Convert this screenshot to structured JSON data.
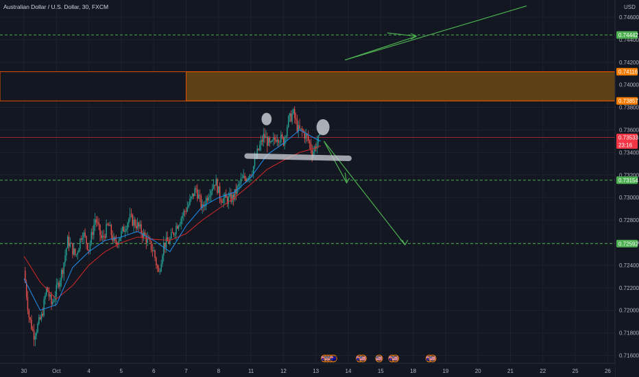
{
  "header": {
    "title": "Australian Dollar / U.S. Dollar, 30, FXCM",
    "currency": "USD"
  },
  "chart_data": {
    "type": "candlestick",
    "title": "Australian Dollar / U.S. Dollar, 30, FXCM",
    "ylim": [
      0.7157,
      0.747
    ],
    "y_ticks": [
      "0.74600",
      "0.74400",
      "0.74200",
      "0.74000",
      "0.73800",
      "0.73600",
      "0.73400",
      "0.73200",
      "0.73000",
      "0.72800",
      "0.72600",
      "0.72400",
      "0.72200",
      "0.72000",
      "0.71800",
      "0.71600"
    ],
    "y_tick_values": [
      0.746,
      0.744,
      0.742,
      0.74,
      0.738,
      0.736,
      0.734,
      0.732,
      0.73,
      0.728,
      0.726,
      0.724,
      0.722,
      0.72,
      0.718,
      0.716
    ],
    "x_ticks": [
      "30",
      "Oct",
      "4",
      "5",
      "6",
      "7",
      "8",
      "11",
      "12",
      "13",
      "14",
      "15",
      "18",
      "19",
      "20",
      "21",
      "22",
      "25",
      "26"
    ],
    "x_tick_days": [
      0,
      1,
      2,
      3,
      4,
      5,
      6,
      7,
      8,
      9,
      10,
      11,
      12,
      13,
      14,
      15,
      16,
      17,
      18
    ],
    "price_path": [
      [
        0.0,
        0.7235
      ],
      [
        0.15,
        0.7195
      ],
      [
        0.3,
        0.7178
      ],
      [
        0.55,
        0.7195
      ],
      [
        0.7,
        0.722
      ],
      [
        0.85,
        0.7205
      ],
      [
        1.0,
        0.7218
      ],
      [
        1.2,
        0.7238
      ],
      [
        1.35,
        0.7262
      ],
      [
        1.6,
        0.7248
      ],
      [
        1.8,
        0.727
      ],
      [
        2.0,
        0.7255
      ],
      [
        2.2,
        0.7282
      ],
      [
        2.4,
        0.7262
      ],
      [
        2.6,
        0.7276
      ],
      [
        2.8,
        0.7258
      ],
      [
        3.0,
        0.7268
      ],
      [
        3.25,
        0.7282
      ],
      [
        3.5,
        0.7275
      ],
      [
        3.8,
        0.7262
      ],
      [
        4.0,
        0.7252
      ],
      [
        4.15,
        0.7232
      ],
      [
        4.3,
        0.7258
      ],
      [
        4.5,
        0.7262
      ],
      [
        4.7,
        0.7275
      ],
      [
        4.9,
        0.7285
      ],
      [
        5.1,
        0.7295
      ],
      [
        5.3,
        0.7308
      ],
      [
        5.5,
        0.729
      ],
      [
        5.7,
        0.7305
      ],
      [
        5.9,
        0.7315
      ],
      [
        6.05,
        0.73
      ],
      [
        6.25,
        0.7298
      ],
      [
        6.45,
        0.73
      ],
      [
        6.7,
        0.7315
      ],
      [
        6.85,
        0.7318
      ],
      [
        7.05,
        0.7325
      ],
      [
        7.2,
        0.734
      ],
      [
        7.4,
        0.7355
      ],
      [
        7.6,
        0.7345
      ],
      [
        7.8,
        0.7355
      ],
      [
        8.0,
        0.735
      ],
      [
        8.15,
        0.7368
      ],
      [
        8.3,
        0.7375
      ],
      [
        8.45,
        0.736
      ],
      [
        8.6,
        0.7358
      ],
      [
        8.75,
        0.7352
      ],
      [
        8.9,
        0.734
      ],
      [
        9.05,
        0.735
      ],
      [
        9.15,
        0.7353
      ]
    ],
    "ma_fast": [
      [
        0.0,
        0.7228
      ],
      [
        0.5,
        0.72
      ],
      [
        1.0,
        0.7205
      ],
      [
        1.5,
        0.7238
      ],
      [
        2.0,
        0.7252
      ],
      [
        2.5,
        0.7262
      ],
      [
        3.0,
        0.7265
      ],
      [
        3.5,
        0.727
      ],
      [
        4.0,
        0.7262
      ],
      [
        4.5,
        0.7252
      ],
      [
        5.0,
        0.7275
      ],
      [
        5.5,
        0.7292
      ],
      [
        6.0,
        0.73
      ],
      [
        6.5,
        0.7305
      ],
      [
        7.0,
        0.7318
      ],
      [
        7.5,
        0.7338
      ],
      [
        8.0,
        0.7348
      ],
      [
        8.5,
        0.736
      ],
      [
        9.0,
        0.7352
      ],
      [
        9.15,
        0.735
      ]
    ],
    "ma_slow": [
      [
        0.0,
        0.7248
      ],
      [
        0.5,
        0.7225
      ],
      [
        1.0,
        0.721
      ],
      [
        1.5,
        0.7222
      ],
      [
        2.0,
        0.724
      ],
      [
        2.5,
        0.7252
      ],
      [
        3.0,
        0.726
      ],
      [
        3.5,
        0.7265
      ],
      [
        4.0,
        0.7263
      ],
      [
        4.5,
        0.7262
      ],
      [
        5.0,
        0.7268
      ],
      [
        5.5,
        0.728
      ],
      [
        6.0,
        0.729
      ],
      [
        6.5,
        0.73
      ],
      [
        7.0,
        0.7312
      ],
      [
        7.5,
        0.7325
      ],
      [
        8.0,
        0.7333
      ],
      [
        8.5,
        0.734
      ],
      [
        9.0,
        0.7344
      ],
      [
        9.15,
        0.7346
      ]
    ],
    "zone": {
      "top": 0.74116,
      "bottom": 0.73857,
      "start_day": 5.0
    },
    "levels": [
      {
        "value": 0.74442,
        "label": "0.74442",
        "color": "#4caf50",
        "dashed": true
      },
      {
        "value": 0.73154,
        "label": "0.73154",
        "color": "#4caf50",
        "dashed": true
      },
      {
        "value": 0.72592,
        "label": "0.72592",
        "color": "#4caf50",
        "dashed": true
      },
      {
        "value": 0.73533,
        "label": "0.73533",
        "color": "#f23645",
        "dashed": false
      }
    ],
    "zone_labels": [
      {
        "value": 0.74116,
        "label": "0.74116",
        "color": "#f57c00"
      },
      {
        "value": 0.73857,
        "label": "0.73857",
        "color": "#f57c00"
      }
    ],
    "current_price": {
      "value": 0.73533,
      "label": "0.73533",
      "countdown": "23:16",
      "color": "#f23645"
    },
    "arrows": [
      {
        "points": [
          [
            9.9,
            0.7422
          ],
          [
            12.1,
            0.7443
          ],
          [
            11.2,
            0.7446
          ]
        ],
        "color": "#4caf50"
      },
      {
        "points": [
          [
            9.9,
            0.7422
          ],
          [
            15.5,
            0.747
          ]
        ],
        "color": "#4caf50"
      },
      {
        "points": [
          [
            9.25,
            0.735
          ],
          [
            9.95,
            0.7313
          ],
          [
            9.9,
            0.7322
          ]
        ],
        "color": "#4caf50"
      },
      {
        "points": [
          [
            9.25,
            0.735
          ],
          [
            11.75,
            0.7258
          ],
          [
            11.6,
            0.7263
          ]
        ],
        "color": "#4caf50"
      }
    ],
    "neckline": {
      "from": [
        6.88,
        0.73368
      ],
      "to": [
        10.02,
        0.73348
      ]
    },
    "shoulders": [
      {
        "day": 7.48,
        "value": 0.73696,
        "r": 7
      },
      {
        "day": 9.22,
        "value": 0.73624,
        "r": 9
      }
    ],
    "event_badges": [
      {
        "day": 9.27,
        "label": "🇦🇺"
      },
      {
        "day": 9.36,
        "label": "🇺🇸"
      },
      {
        "day": 9.45,
        "label": "🇺🇸"
      },
      {
        "day": 9.54,
        "label": "🇦🇺"
      },
      {
        "day": 10.35,
        "label": "🇦🇺"
      },
      {
        "day": 10.45,
        "label": "🇺🇸"
      },
      {
        "day": 10.95,
        "label": "🇺🇸"
      },
      {
        "day": 11.35,
        "label": "🇦🇺"
      },
      {
        "day": 11.45,
        "label": "🇺🇸"
      },
      {
        "day": 12.5,
        "label": "🇦🇺"
      },
      {
        "day": 12.6,
        "label": "🇺🇸"
      }
    ]
  }
}
